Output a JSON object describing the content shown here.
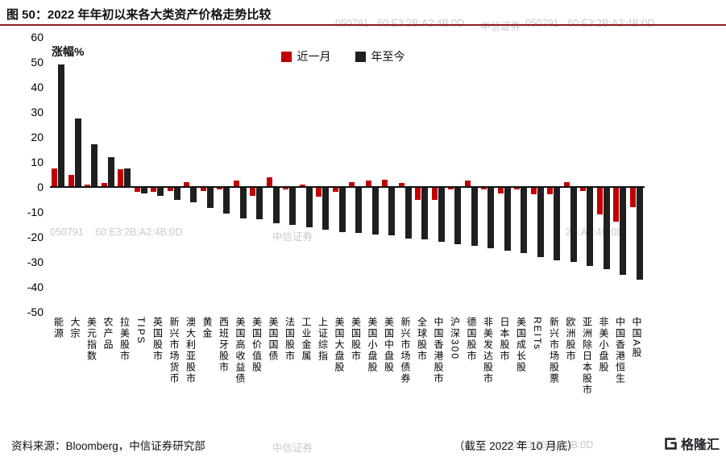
{
  "header": {
    "title": "图 50：2022 年年初以来各大类资产价格走势比较"
  },
  "watermark": {
    "code": "050791",
    "mac": "60:E3:2B:A2:4B:0D",
    "brand": "中信证券",
    "mac_fragment": "2B:A2:4B:0D"
  },
  "chart_data": {
    "type": "bar",
    "title": "2022 年年初以来各大类资产价格走势比较",
    "ylabel": "涨幅%",
    "xlabel": "",
    "ylim": [
      -50,
      60
    ],
    "yticks": [
      60,
      50,
      40,
      30,
      20,
      10,
      0,
      -10,
      -20,
      -30,
      -40,
      -50
    ],
    "grid": false,
    "legend_position": "top-center",
    "categories": [
      "能源",
      "大宗",
      "美元指数",
      "农产品",
      "拉美股市",
      "TIPS",
      "英国股市",
      "新兴市场货币",
      "澳大利亚股市",
      "黄金",
      "西班牙股市",
      "美国高收益债",
      "美国价值股",
      "美国国债",
      "法国股市",
      "工业金属",
      "上证综指",
      "美国大盘股",
      "美国股市",
      "美国小盘股",
      "美国中盘股",
      "新兴市场债券",
      "全球股市",
      "中国香港股市",
      "沪深300",
      "德国股市",
      "非美发达股市",
      "日本股市",
      "美国成长股",
      "REITs",
      "新兴市场股票",
      "欧洲股市",
      "亚洲除日本股市",
      "非美小盘股",
      "中国香港恒生",
      "中国A股"
    ],
    "series": [
      {
        "name": "近一月",
        "color": "#C00000",
        "values": [
          7.5,
          5,
          1,
          1.5,
          7,
          -2,
          -2,
          -1.5,
          2,
          -1.5,
          -1,
          2.5,
          -3.5,
          4,
          -1,
          1,
          -4,
          -2,
          2,
          2.5,
          3,
          1.5,
          -5,
          -5,
          -1,
          2.5,
          -1,
          -2.5,
          -1,
          -3,
          -3,
          2,
          -1.5,
          -11,
          -14,
          -8
        ]
      },
      {
        "name": "年至今",
        "color": "#1F1F1F",
        "values": [
          49,
          27.5,
          17,
          12,
          7.5,
          -2.5,
          -3.5,
          -5,
          -6,
          -8.5,
          -10.5,
          -12.5,
          -13,
          -14.5,
          -15,
          -16,
          -17,
          -18,
          -18.5,
          -19,
          -19.5,
          -20.5,
          -21,
          -22,
          -23,
          -23.5,
          -24.5,
          -25.5,
          -26.5,
          -28,
          -29.5,
          -30,
          -31.5,
          -33,
          -35,
          -37
        ]
      }
    ]
  },
  "footer": {
    "source": "资料来源：Bloomberg，中信证券研究部",
    "as_of": "（截至 2022 年 10 月底）",
    "logo_text": "格隆汇"
  }
}
